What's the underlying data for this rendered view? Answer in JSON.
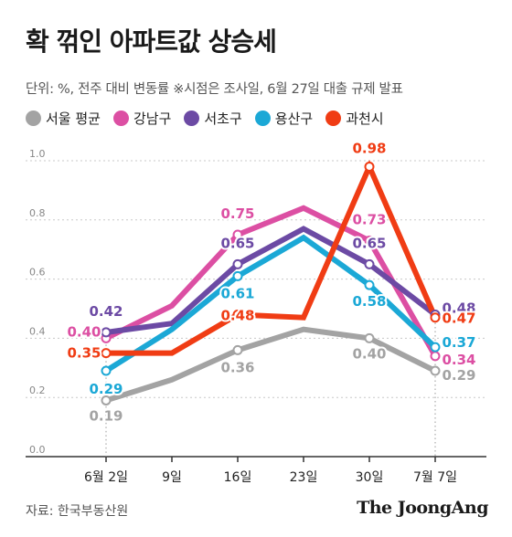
{
  "header": {
    "title": "확 꺾인 아파트값 상승세",
    "subtitle": "단위: %, 전주 대비 변동률  ※시점은 조사일, 6월 27일 대출 규제 발표"
  },
  "footer": {
    "source": "자료: 한국부동산원",
    "brand": "The JoongAng"
  },
  "colors": {
    "grid": "#c8c8c8",
    "axis": "#333333"
  },
  "chart_data": {
    "type": "line",
    "categories": [
      "6월 2일",
      "9일",
      "16일",
      "23일",
      "30일",
      "7월 7일"
    ],
    "ylim": [
      0,
      1.0
    ],
    "yticks": [
      "0.0",
      "0.2",
      "0.4",
      "0.6",
      "0.8",
      "1.0"
    ],
    "grid": true,
    "legend_position": "top-left",
    "series": [
      {
        "name": "서울 평균",
        "color": "#a3a3a3",
        "values": [
          0.19,
          0.26,
          0.36,
          0.43,
          0.4,
          0.29
        ],
        "labels": [
          "0.19",
          "",
          "0.36",
          "",
          "0.40",
          "0.29"
        ]
      },
      {
        "name": "강남구",
        "color": "#dc4fa3",
        "values": [
          0.4,
          0.51,
          0.75,
          0.84,
          0.73,
          0.34
        ],
        "labels": [
          "0.40",
          "",
          "0.75",
          "",
          "0.73",
          "0.34"
        ]
      },
      {
        "name": "서초구",
        "color": "#6c4aa4",
        "values": [
          0.42,
          0.45,
          0.65,
          0.77,
          0.65,
          0.48
        ],
        "labels": [
          "0.42",
          "",
          "0.65",
          "",
          "0.65",
          "0.48"
        ]
      },
      {
        "name": "용산구",
        "color": "#1ba8d6",
        "values": [
          0.29,
          0.43,
          0.61,
          0.74,
          0.58,
          0.37
        ],
        "labels": [
          "0.29",
          "",
          "0.61",
          "",
          "0.58",
          "0.37"
        ]
      },
      {
        "name": "과천시",
        "color": "#f03c14",
        "values": [
          0.35,
          0.35,
          0.48,
          0.47,
          0.98,
          0.47
        ],
        "labels": [
          "0.35",
          "",
          "0.48",
          "",
          "0.98",
          "0.47"
        ]
      }
    ]
  }
}
